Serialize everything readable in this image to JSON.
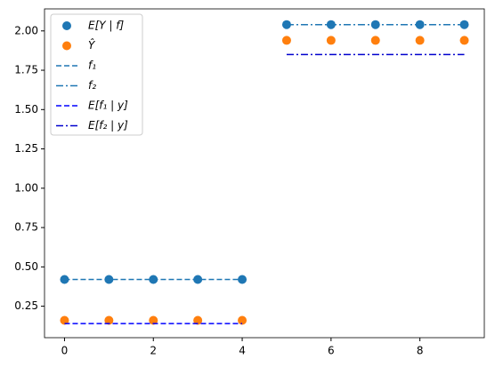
{
  "chart_data": {
    "type": "scatter",
    "xlim": [
      -0.45,
      9.45
    ],
    "ylim": [
      0.05,
      2.14
    ],
    "xticks": [
      0,
      2,
      4,
      6,
      8
    ],
    "yticks": [
      0.25,
      {
        "value": 0.5,
        "label": "0.50"
      },
      0.75,
      {
        "value": 1.0,
        "label": "1.00"
      },
      1.25,
      {
        "value": 1.5,
        "label": "1.50"
      },
      1.75,
      {
        "value": 2.0,
        "label": "2.00"
      }
    ],
    "legend": "upper left",
    "series": [
      {
        "name": "E[Y | f]",
        "style": "marker",
        "color": "#1f77b4",
        "x": [
          0,
          1,
          2,
          3,
          4,
          5,
          6,
          7,
          8,
          9
        ],
        "values": [
          0.42,
          0.42,
          0.42,
          0.42,
          0.42,
          2.04,
          2.04,
          2.04,
          2.04,
          2.04
        ]
      },
      {
        "name": "Ŷ",
        "style": "marker",
        "color": "#ff7f0e",
        "x": [
          0,
          1,
          2,
          3,
          4,
          5,
          6,
          7,
          8,
          9
        ],
        "values": [
          0.16,
          0.16,
          0.16,
          0.16,
          0.16,
          1.94,
          1.94,
          1.94,
          1.94,
          1.94
        ]
      },
      {
        "name": "f₁",
        "style": "dashed",
        "color": "#1f77b4",
        "x": [
          0,
          1,
          2,
          3,
          4
        ],
        "values": [
          0.42,
          0.42,
          0.42,
          0.42,
          0.42
        ]
      },
      {
        "name": "f₂",
        "style": "dashdot",
        "color": "#1f77b4",
        "x": [
          5,
          6,
          7,
          8,
          9
        ],
        "values": [
          2.04,
          2.04,
          2.04,
          2.04,
          2.04
        ]
      },
      {
        "name": "E[f₁ | y]",
        "style": "dashed",
        "color": "#0000ff",
        "x": [
          0,
          1,
          2,
          3,
          4
        ],
        "values": [
          0.14,
          0.14,
          0.14,
          0.14,
          0.14
        ]
      },
      {
        "name": "E[f₂ | y]",
        "style": "dashdot",
        "color": "#0000cd",
        "x": [
          5,
          6,
          7,
          8,
          9
        ],
        "values": [
          1.85,
          1.85,
          1.85,
          1.85,
          1.85
        ]
      }
    ]
  }
}
